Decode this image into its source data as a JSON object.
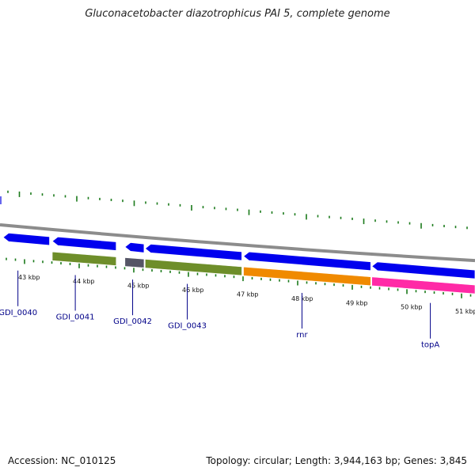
{
  "title": "Gluconacetobacter diazotrophicus PAI 5, complete genome",
  "footer": {
    "accession": "Accession: NC_010125",
    "summary": "Topology: circular; Length: 3,944,163 bp; Genes: 3,845"
  },
  "colors": {
    "backbone": "#8c8c8c",
    "cds": "#0000ee",
    "cog_green": "#6e8e2a",
    "cog_orange": "#f08a00",
    "cog_pink": "#ff2aa6",
    "cog_gray": "#555566",
    "ticks": "#1a7a1a",
    "label": "#000088"
  },
  "scale": {
    "ticks": [
      {
        "kbp": 43,
        "label": "43 kbp"
      },
      {
        "kbp": 44,
        "label": "44 kbp"
      },
      {
        "kbp": 45,
        "label": "45 kbp"
      },
      {
        "kbp": 46,
        "label": "46 kbp"
      },
      {
        "kbp": 47,
        "label": "47 kbp"
      },
      {
        "kbp": 48,
        "label": "48 kbp"
      },
      {
        "kbp": 49,
        "label": "49 kbp"
      },
      {
        "kbp": 50,
        "label": "50 kbp"
      },
      {
        "kbp": 51,
        "label": "51 kbp"
      }
    ]
  },
  "genes": [
    {
      "start": 42.55,
      "end": 43.4,
      "strand": "-",
      "cog": null
    },
    {
      "start": 43.45,
      "end": 44.62,
      "strand": "-",
      "cog": "green"
    },
    {
      "start": 44.78,
      "end": 45.13,
      "strand": "-",
      "cog": "gray"
    },
    {
      "start": 45.15,
      "end": 46.92,
      "strand": "-",
      "cog": "green"
    },
    {
      "start": 46.95,
      "end": 49.28,
      "strand": "-",
      "cog": "orange"
    },
    {
      "start": 49.3,
      "end": 51.2,
      "strand": "-",
      "cog": "pink"
    }
  ],
  "gene_labels": [
    {
      "kbp": 42.85,
      "name": "GDI_0040"
    },
    {
      "kbp": 43.9,
      "name": "GDI_0041"
    },
    {
      "kbp": 44.95,
      "name": "GDI_0042"
    },
    {
      "kbp": 45.95,
      "name": "GDI_0043"
    },
    {
      "kbp": 48.05,
      "name": "rnr"
    },
    {
      "kbp": 50.4,
      "name": "topA"
    }
  ]
}
